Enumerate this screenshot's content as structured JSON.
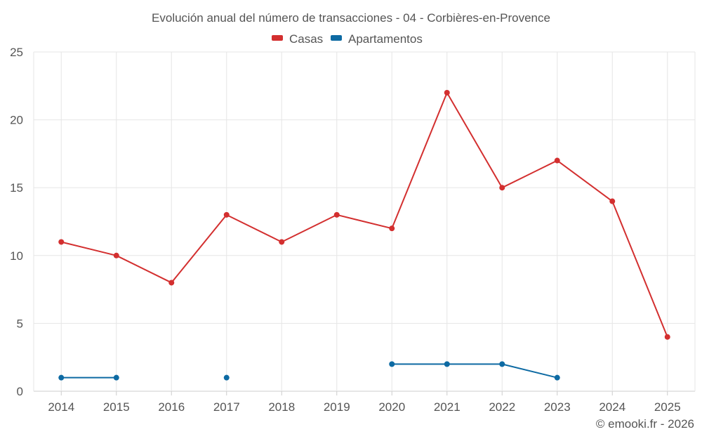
{
  "chart_data": {
    "type": "line",
    "title": "Evolución anual del número de transacciones - 04 - Corbières-en-Provence",
    "categories": [
      "2014",
      "2015",
      "2016",
      "2017",
      "2018",
      "2019",
      "2020",
      "2021",
      "2022",
      "2023",
      "2024",
      "2025"
    ],
    "series": [
      {
        "name": "Casas",
        "color": "#d32f2f",
        "values": [
          11,
          10,
          8,
          13,
          11,
          13,
          12,
          22,
          15,
          17,
          14,
          4
        ]
      },
      {
        "name": "Apartamentos",
        "color": "#0d6aa3",
        "values": [
          1,
          1,
          null,
          1,
          null,
          null,
          2,
          2,
          2,
          1,
          null,
          null
        ]
      }
    ],
    "ylim": [
      0,
      25
    ],
    "yticks": [
      0,
      5,
      10,
      15,
      20,
      25
    ],
    "xlabel": "",
    "ylabel": "",
    "grid": true,
    "legend_position": "top-center"
  },
  "credit": "© emooki.fr - 2026"
}
